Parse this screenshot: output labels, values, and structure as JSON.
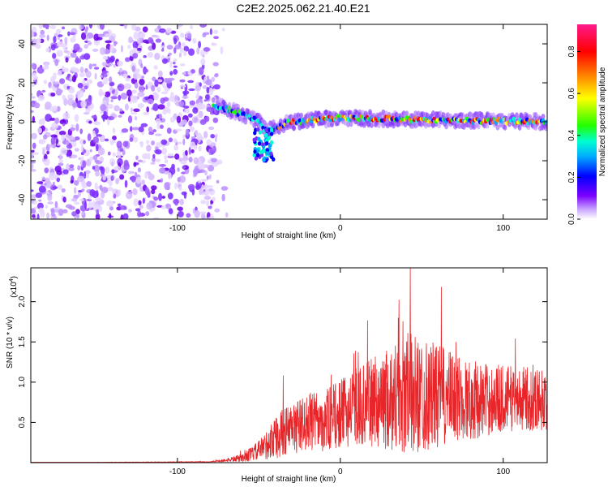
{
  "title": "C2E2.2025.062.21.40.E21",
  "colors": {
    "snr_line": "#e8262a",
    "spectrogram_base": "#7b2cff",
    "axis": "#000000"
  },
  "chart_data": [
    {
      "type": "heatmap",
      "name": "spectrogram",
      "xlabel": "Height of straight line (km)",
      "ylabel": "Frequency (Hz)",
      "xlim": [
        -190,
        127
      ],
      "ylim": [
        -50,
        50
      ],
      "xticks": [
        -100,
        0,
        100
      ],
      "xtick_labels": [
        "-100",
        "0",
        "100"
      ],
      "yticks": [
        -40,
        -20,
        0,
        20,
        40
      ],
      "ytick_labels": [
        "-40",
        "-20",
        "0",
        "20",
        "40"
      ],
      "colorbar": {
        "label": "Normalized spectral amplitude",
        "range": [
          0.0,
          0.93
        ],
        "ticks": [
          0.0,
          0.2,
          0.4,
          0.6,
          0.8
        ],
        "tick_labels": [
          "0.0",
          "0.2",
          "0.4",
          "0.6",
          "0.8"
        ],
        "colormap": [
          "#ffffff",
          "#7b00ff",
          "#0000ff",
          "#00b7ff",
          "#00ffb0",
          "#22ff00",
          "#ffff00",
          "#ff8000",
          "#ff0000",
          "#ff1a8c"
        ]
      },
      "features": {
        "noise_region_x": [
          -190,
          -75
        ],
        "signal_band": [
          {
            "x": -75,
            "f": 8
          },
          {
            "x": -60,
            "f": 4
          },
          {
            "x": -50,
            "f": 0
          },
          {
            "x": -45,
            "f": -5
          },
          {
            "x": -40,
            "f": -3
          },
          {
            "x": -30,
            "f": 0
          },
          {
            "x": 0,
            "f": 2
          },
          {
            "x": 50,
            "f": 1
          },
          {
            "x": 127,
            "f": 0
          }
        ],
        "dip": {
          "x": -47,
          "f": -12
        }
      }
    },
    {
      "type": "line",
      "name": "snr",
      "xlabel": "Height of straight line (km)",
      "ylabel": "SNR (10 * v/v)",
      "yscale_label": "(x10",
      "yscale_exponent": "4",
      "xlim": [
        -190,
        127
      ],
      "ylim": [
        0,
        2.42
      ],
      "xticks": [
        -100,
        0,
        100
      ],
      "xtick_labels": [
        "-100",
        "0",
        "100"
      ],
      "yticks": [
        0.5,
        1.0,
        1.5,
        2.0
      ],
      "ytick_labels": [
        "0.5",
        "1.0",
        "1.5",
        "2.0"
      ],
      "envelope": {
        "x": [
          -190,
          -80,
          -70,
          -60,
          -50,
          -40,
          -35,
          -30,
          -20,
          -10,
          0,
          10,
          20,
          30,
          40,
          50,
          60,
          70,
          80,
          90,
          100,
          110,
          127
        ],
        "mean": [
          0.0,
          0.01,
          0.03,
          0.06,
          0.15,
          0.3,
          0.38,
          0.42,
          0.5,
          0.52,
          0.6,
          0.7,
          0.75,
          0.8,
          0.85,
          0.85,
          0.82,
          0.8,
          0.78,
          0.78,
          0.8,
          0.8,
          0.78
        ],
        "amp": [
          0.0,
          0.005,
          0.02,
          0.05,
          0.12,
          0.25,
          0.3,
          0.32,
          0.35,
          0.38,
          0.42,
          0.48,
          0.55,
          0.65,
          0.8,
          0.7,
          0.65,
          0.55,
          0.5,
          0.45,
          0.42,
          0.4,
          0.38
        ]
      },
      "peaks": [
        {
          "x": 43,
          "y": 2.42
        },
        {
          "x": 62,
          "y": 2.18
        },
        {
          "x": 36,
          "y": 2.02
        },
        {
          "x": -35,
          "y": 1.08
        }
      ]
    }
  ]
}
